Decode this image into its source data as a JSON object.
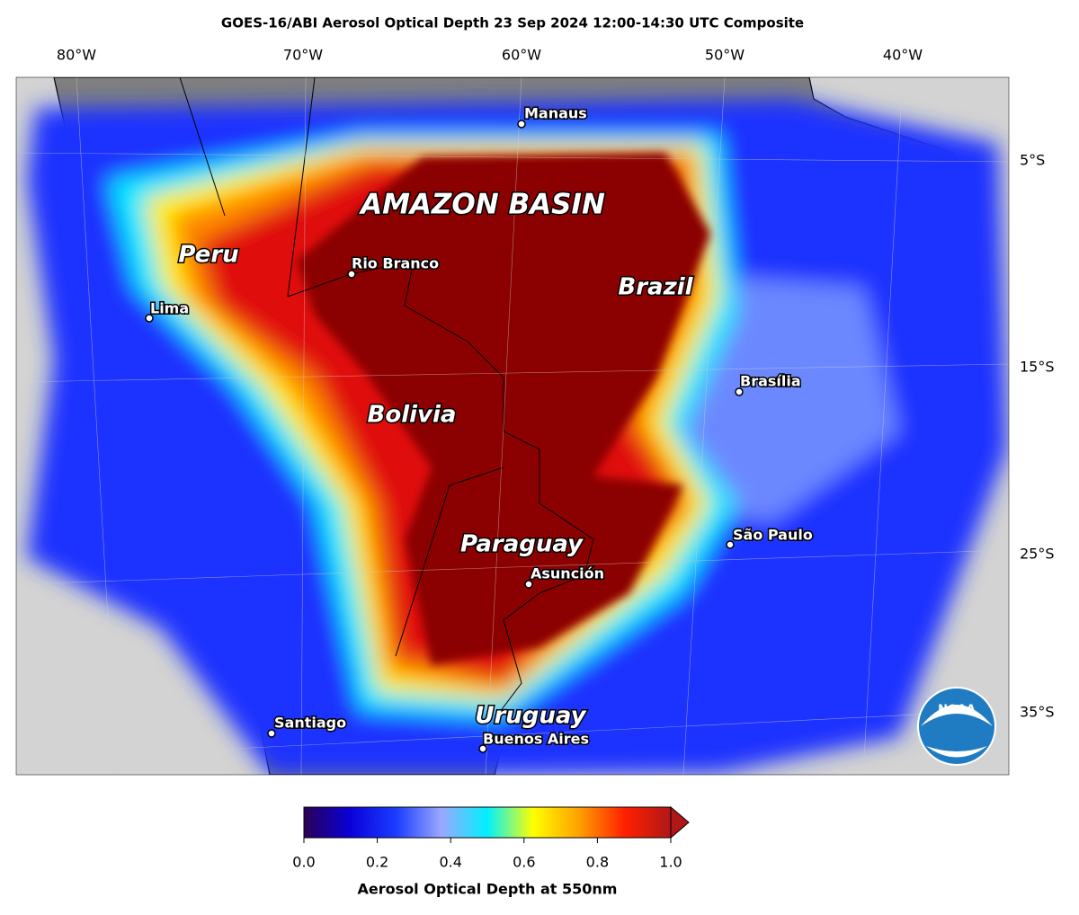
{
  "title": "GOES-16/ABI Aerosol Optical Depth  23 Sep 2024 12:00-14:30 UTC Composite",
  "map": {
    "lon_labels": [
      "80°W",
      "70°W",
      "60°W",
      "50°W",
      "40°W"
    ],
    "lat_labels": [
      "5°S",
      "15°S",
      "25°S",
      "35°S"
    ],
    "regions": [
      "AMAZON BASIN",
      "Peru",
      "Brazil",
      "Bolivia",
      "Paraguay",
      "Uruguay"
    ],
    "cities": [
      "Manaus",
      "Rio Branco",
      "Lima",
      "Brasília",
      "São Paulo",
      "Asunción",
      "Santiago",
      "Buenos Aires"
    ],
    "logo": "NOAA"
  },
  "colorbar": {
    "range": [
      0,
      1
    ],
    "ticks": [
      {
        "value": 0,
        "label": "0.0"
      },
      {
        "value": 0.2,
        "label": "0.2"
      },
      {
        "value": 0.4,
        "label": "0.4"
      },
      {
        "value": 0.6,
        "label": "0.6"
      },
      {
        "value": 0.8,
        "label": "0.8"
      },
      {
        "value": 1,
        "label": "1.0"
      }
    ],
    "colors": [
      "#2a0055",
      "#0a00d8",
      "#1a3cff",
      "#9aa8ff",
      "#00f0ff",
      "#ffff00",
      "#ffa000",
      "#ff2000",
      "#b01818"
    ],
    "label": "Aerosol Optical Depth at 550nm"
  }
}
